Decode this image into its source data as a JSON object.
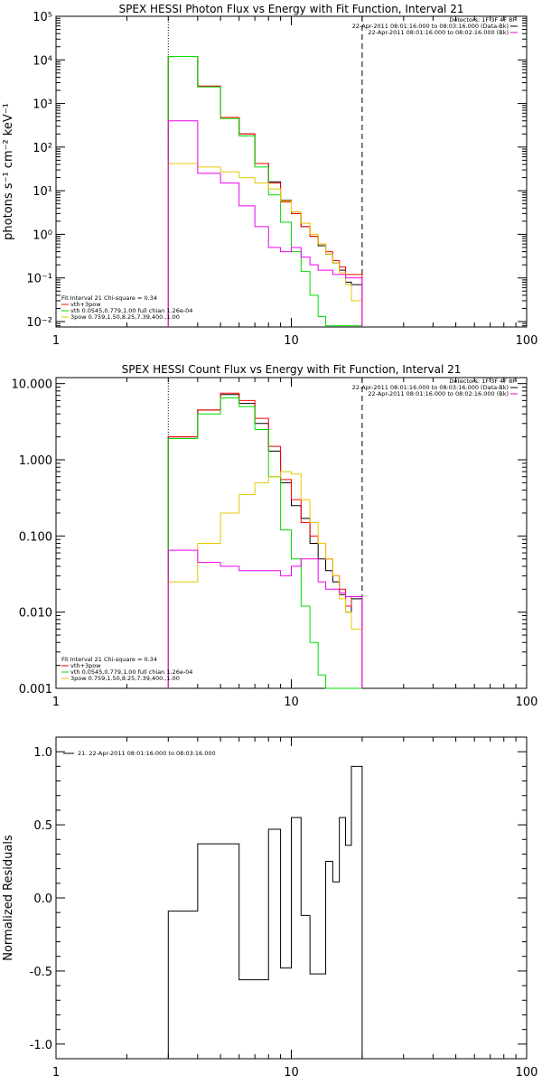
{
  "colors": {
    "black": "#000000",
    "red": "#ff0000",
    "green": "#00dd00",
    "magenta": "#ee00ee",
    "yellow": "#e8c800"
  },
  "chart_data": [
    {
      "type": "line",
      "title": "SPEX HESSI Photon Flux vs Energy with Fit Function, Interval 21",
      "ylabel": "photons s⁻¹ cm⁻² keV⁻¹",
      "xlabel": "",
      "xscale": "log",
      "yscale": "log",
      "xlim": [
        1,
        100
      ],
      "ylim": [
        0.0075,
        100000
      ],
      "xticks": [
        1,
        10,
        100
      ],
      "xticklabels": [
        "1",
        "10",
        "100"
      ],
      "yticks": [
        0.01,
        0.1,
        1,
        10,
        100,
        1000,
        10000,
        100000
      ],
      "yticklabels": [
        "10⁻²",
        "10⁻¹",
        "10⁰",
        "10¹",
        "10²",
        "10³",
        "10⁴",
        "10⁵"
      ],
      "vlines": [
        {
          "x": 3,
          "style": "dotted"
        },
        {
          "x": 20,
          "style": "dashed"
        }
      ],
      "bin_edges": [
        3,
        4,
        5,
        6,
        7,
        8,
        9,
        10,
        11,
        12,
        13,
        14,
        15,
        16,
        17,
        18,
        20
      ],
      "header": [
        "Detectors: 1F 3F 4F 8F",
        "22-Apr-2011 08:01:16.000 to 08:03:16.000 (Data-Bk)",
        "22-Apr-2011 08:01:16.000 to 08:02:16.000 (Bk)"
      ],
      "header_swatches": [
        "black",
        "magenta"
      ],
      "fit_info": [
        "Fit Interval 21    Chi-square = 0.34",
        "vth+3pow",
        "vth 0.0545,0.779,1.00  full chian 1.26e-04",
        "3pow 0.759,1.50,8.25,7.39,400.,1.00"
      ],
      "fit_info_colors": [
        "black",
        "red",
        "green",
        "yellow"
      ],
      "series": [
        {
          "name": "Data-Bk",
          "color": "black",
          "values": [
            12000,
            2500,
            480,
            200,
            42,
            16,
            6,
            3,
            1.5,
            0.9,
            0.55,
            0.35,
            0.22,
            0.15,
            0.08,
            0.07
          ]
        },
        {
          "name": "vth+3pow",
          "color": "red",
          "values": [
            12000,
            2500,
            480,
            200,
            42,
            15,
            5.5,
            3,
            1.5,
            0.9,
            0.6,
            0.4,
            0.25,
            0.18,
            0.12,
            0.12
          ]
        },
        {
          "name": "vth",
          "color": "green",
          "values": [
            12000,
            2400,
            450,
            180,
            35,
            8,
            1.9,
            0.4,
            0.14,
            0.04,
            0.013,
            0.008,
            0.008,
            0.008,
            0.008,
            0.008
          ]
        },
        {
          "name": "3pow",
          "color": "yellow",
          "values": [
            42,
            35,
            27,
            20,
            15,
            11,
            5.8,
            3.3,
            1.8,
            1,
            0.6,
            0.35,
            0.22,
            0.13,
            0.07,
            0.03
          ]
        },
        {
          "name": "Bk",
          "color": "magenta",
          "values": [
            400,
            25,
            15,
            4.5,
            1.5,
            0.5,
            0.4,
            0.5,
            0.3,
            0.2,
            0.15,
            0.15,
            0.12,
            0.12,
            0.1,
            0.1
          ]
        }
      ]
    },
    {
      "type": "line",
      "title": "SPEX HESSI Count Flux vs Energy with Fit Function, Interval 21",
      "ylabel": "",
      "xlabel": "",
      "xscale": "log",
      "yscale": "log",
      "xlim": [
        1,
        100
      ],
      "ylim": [
        0.001,
        12
      ],
      "xticks": [
        1,
        10,
        100
      ],
      "xticklabels": [
        "1",
        "10",
        "100"
      ],
      "yticks": [
        0.001,
        0.01,
        0.1,
        1,
        10
      ],
      "yticklabels": [
        "0.001",
        "0.010",
        "0.100",
        "1.000",
        "10.000"
      ],
      "vlines": [
        {
          "x": 3,
          "style": "dotted"
        },
        {
          "x": 20,
          "style": "dashed"
        }
      ],
      "bin_edges": [
        3,
        4,
        5,
        6,
        7,
        8,
        9,
        10,
        11,
        12,
        13,
        14,
        15,
        16,
        17,
        18,
        20
      ],
      "header": [
        "Detectors: 1F 3F 4F 8F",
        "22-Apr-2011 08:01:16.000 to 08:03:16.000 (Data-Bk)",
        "22-Apr-2011 08:01:16.000 to 08:02:16.000 (Bk)"
      ],
      "header_swatches": [
        "black",
        "magenta"
      ],
      "fit_info": [
        "Fit Interval 21    Chi-square = 0.34",
        "vth+3pow",
        "vth 0.0545,0.779,1.00  full chian 1.26e-04",
        "3pow 0.759,1.50,8.25,7.39,400.,1.00"
      ],
      "fit_info_colors": [
        "black",
        "red",
        "green",
        "yellow"
      ],
      "series": [
        {
          "name": "Data-Bk",
          "color": "black",
          "values": [
            2,
            4.5,
            7.2,
            5.5,
            3,
            1.3,
            0.5,
            0.25,
            0.17,
            0.08,
            0.05,
            0.035,
            0.025,
            0.017,
            0.01,
            0.015
          ]
        },
        {
          "name": "vth+3pow",
          "color": "red",
          "values": [
            2,
            4.5,
            7.5,
            6,
            3.5,
            1.5,
            0.55,
            0.3,
            0.15,
            0.1,
            0.08,
            0.05,
            0.03,
            0.02,
            0.012,
            0.016
          ]
        },
        {
          "name": "vth",
          "color": "green",
          "values": [
            1.9,
            4,
            6.5,
            5,
            2.5,
            0.6,
            0.12,
            0.05,
            0.012,
            0.004,
            0.0015,
            0.0008,
            0.0008,
            0.0008,
            0.0008,
            0.0008
          ]
        },
        {
          "name": "3pow",
          "color": "yellow",
          "values": [
            0.025,
            0.08,
            0.2,
            0.35,
            0.5,
            0.6,
            0.7,
            0.65,
            0.3,
            0.15,
            0.08,
            0.05,
            0.03,
            0.015,
            0.01,
            0.006
          ]
        },
        {
          "name": "Bk",
          "color": "magenta",
          "values": [
            0.065,
            0.045,
            0.04,
            0.035,
            0.035,
            0.035,
            0.03,
            0.04,
            0.05,
            0.05,
            0.025,
            0.02,
            0.02,
            0.018,
            0.016,
            0.016
          ]
        }
      ]
    },
    {
      "type": "line",
      "title": "",
      "ylabel": "Normalized Residuals",
      "xlabel": "",
      "xscale": "log",
      "yscale": "linear",
      "xlim": [
        1,
        100
      ],
      "ylim": [
        -1.1,
        1.1
      ],
      "xticks": [
        1,
        10,
        100
      ],
      "xticklabels": [
        "1",
        "10",
        "100"
      ],
      "yticks": [
        -1,
        -0.5,
        0,
        0.5,
        1
      ],
      "yticklabels": [
        "-1.0",
        "-0.5",
        "0.0",
        "0.5",
        "1.0"
      ],
      "vlines": [],
      "bin_edges": [
        3,
        4,
        5,
        6,
        7,
        8,
        9,
        10,
        11,
        12,
        13,
        14,
        15,
        16,
        17,
        18,
        20
      ],
      "header": [],
      "header_swatches": [],
      "fit_info": [],
      "fit_info_colors": [],
      "legend": [
        "21. 22-Apr-2011 08:01:16.000 to 08:03:16.000"
      ],
      "legend_colors": [
        "black"
      ],
      "series": [
        {
          "color": "black",
          "drop_ends": true,
          "values": [
            -0.09,
            0.37,
            0.37,
            -0.56,
            -0.56,
            0.47,
            -0.48,
            0.55,
            -0.12,
            -0.52,
            -0.52,
            0.25,
            0.11,
            0.55,
            0.36,
            0.9
          ]
        }
      ]
    }
  ]
}
